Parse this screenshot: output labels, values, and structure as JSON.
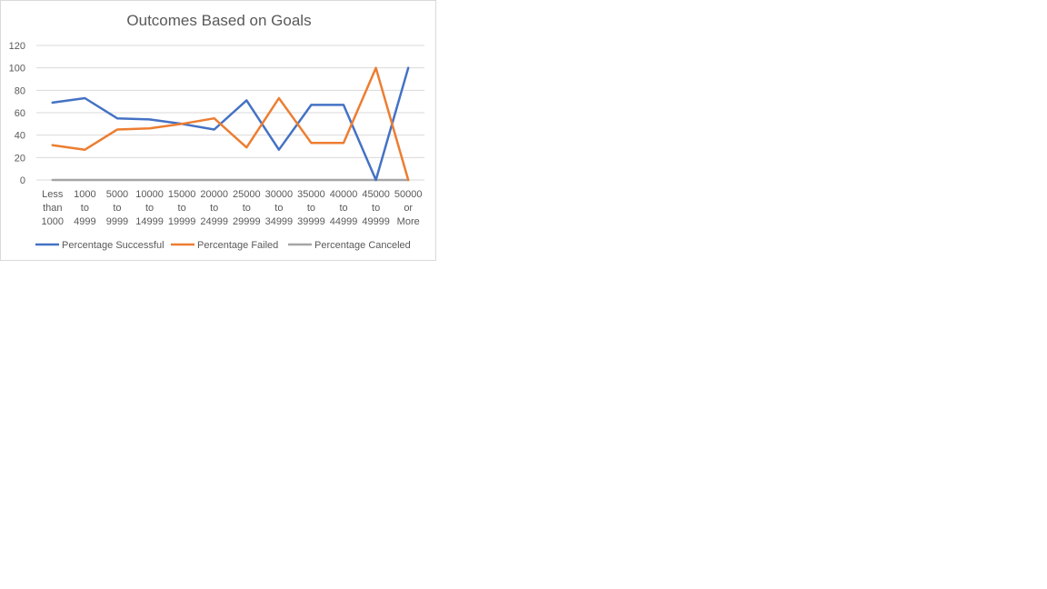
{
  "chart_data": {
    "type": "line",
    "title": "Outcomes Based on Goals",
    "xlabel": "",
    "ylabel": "",
    "ylim": [
      0,
      120
    ],
    "yticks": [
      0,
      20,
      40,
      60,
      80,
      100,
      120
    ],
    "grid": true,
    "legend_position": "bottom",
    "categories": [
      [
        "Less",
        "than",
        "1000"
      ],
      [
        "1000",
        "to",
        "4999"
      ],
      [
        "5000",
        "to",
        "9999"
      ],
      [
        "10000",
        "to",
        "14999"
      ],
      [
        "15000",
        "to",
        "19999"
      ],
      [
        "20000",
        "to",
        "24999"
      ],
      [
        "25000",
        "to",
        "29999"
      ],
      [
        "30000",
        "to",
        "34999"
      ],
      [
        "35000",
        "to",
        "39999"
      ],
      [
        "40000",
        "to",
        "44999"
      ],
      [
        "45000",
        "to",
        "49999"
      ],
      [
        "50000",
        "or",
        "More"
      ]
    ],
    "series": [
      {
        "name": "Percentage Successful",
        "color": "#4472c4",
        "values": [
          69,
          73,
          55,
          54,
          50,
          45,
          71,
          27,
          67,
          67,
          0,
          100
        ]
      },
      {
        "name": "Percentage Failed",
        "color": "#ed7d31",
        "values": [
          31,
          27,
          45,
          46,
          50,
          55,
          29,
          73,
          33,
          33,
          100,
          0
        ]
      },
      {
        "name": "Percentage Canceled",
        "color": "#a5a5a5",
        "values": [
          0,
          0,
          0,
          0,
          0,
          0,
          0,
          0,
          0,
          0,
          0,
          0
        ]
      }
    ]
  }
}
